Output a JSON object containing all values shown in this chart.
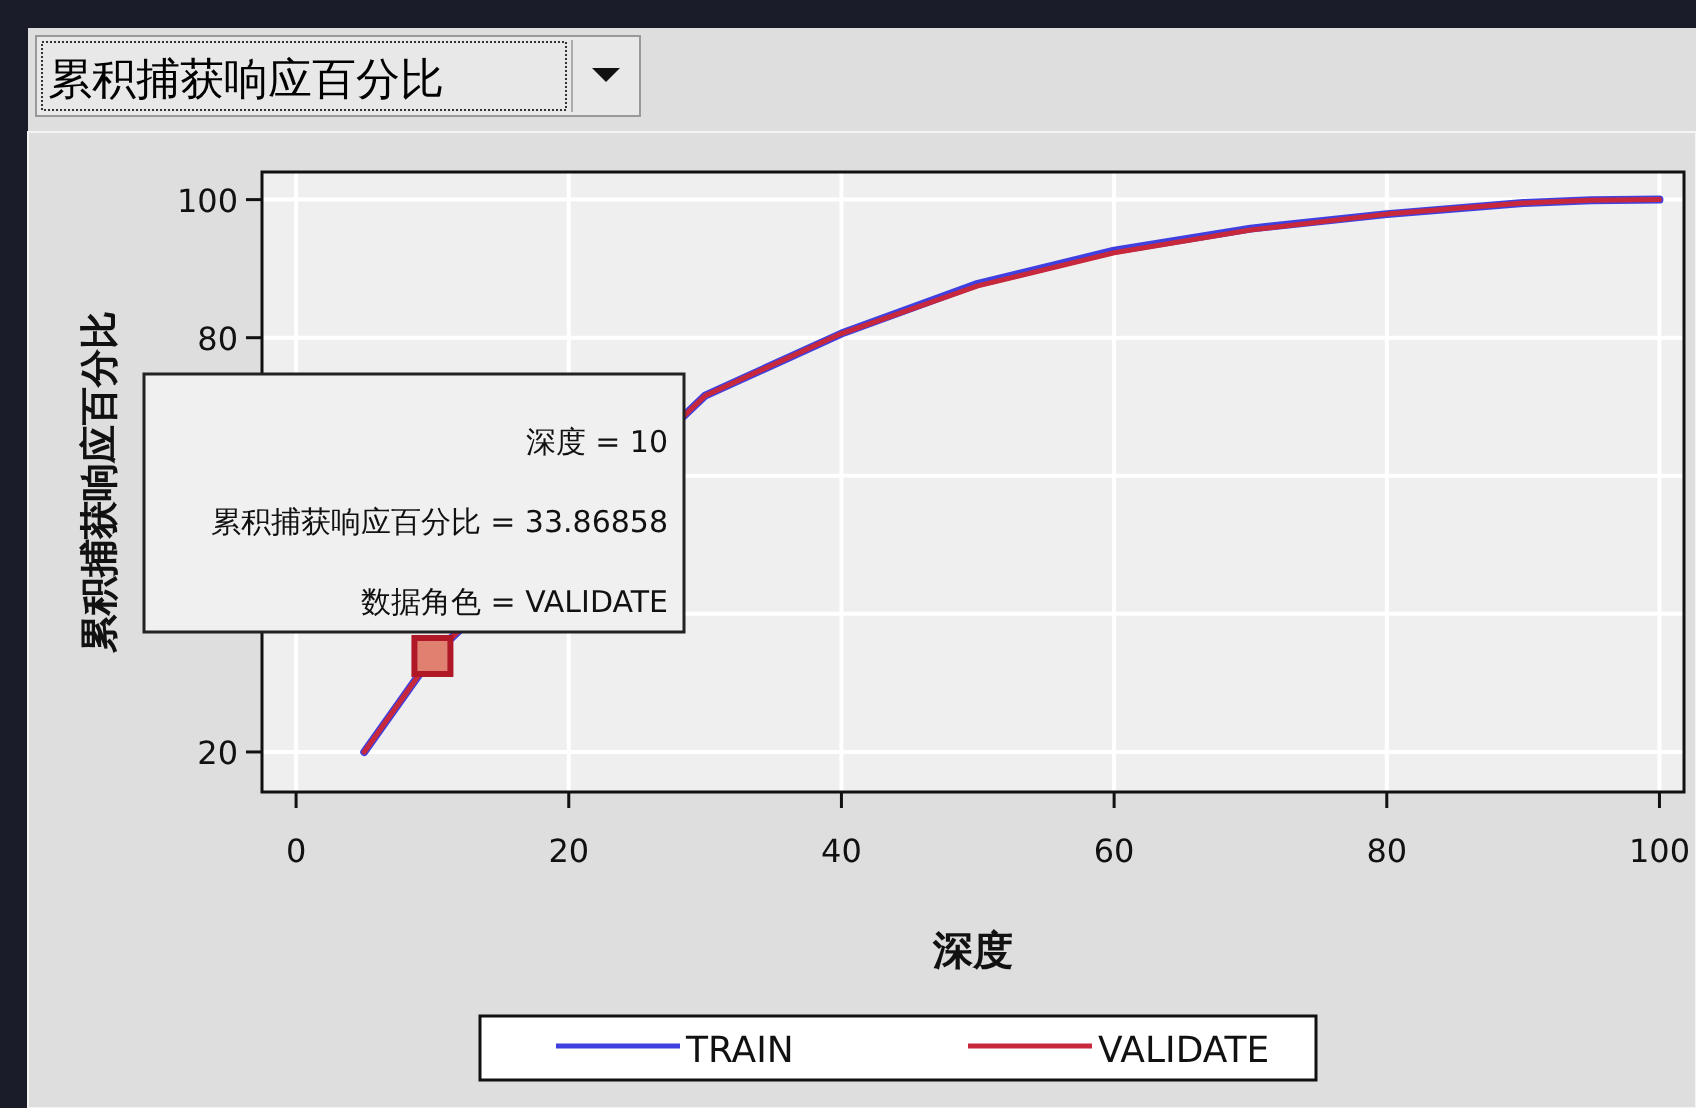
{
  "chart_data": {
    "type": "line",
    "title": "累积捕获响应百分比",
    "xlabel": "深度",
    "ylabel": "累积捕获响应百分比",
    "x": [
      5,
      10,
      30,
      40,
      50,
      60,
      70,
      80,
      90,
      95,
      100
    ],
    "series": [
      {
        "name": "TRAIN",
        "color": "#4040e0",
        "values": [
          20,
          33.9,
          71.6,
          80.6,
          87.8,
          92.6,
          95.8,
          97.9,
          99.5,
          99.9,
          100
        ]
      },
      {
        "name": "VALIDATE",
        "color": "#c8283c",
        "values": [
          20,
          33.9,
          71.6,
          80.6,
          87.5,
          92.3,
          95.6,
          97.9,
          99.5,
          99.9,
          100
        ]
      }
    ],
    "xlim": [
      -2.5,
      101.8
    ],
    "ylim": [
      14.2,
      104
    ],
    "xticks": [
      0,
      20,
      40,
      60,
      80,
      100
    ],
    "yticks": [
      20,
      {
        "value": 40,
        "label": null
      },
      {
        "value": 60,
        "label": null
      },
      80,
      100
    ],
    "grid": true,
    "legend": "bottom",
    "annotations": [
      "深度 = 10",
      "累积捕获响应百分比 = 33.86858",
      {
        "text": "数据角色 = VALIDATE",
        "x": 10,
        "y": 33.9
      }
    ]
  }
}
